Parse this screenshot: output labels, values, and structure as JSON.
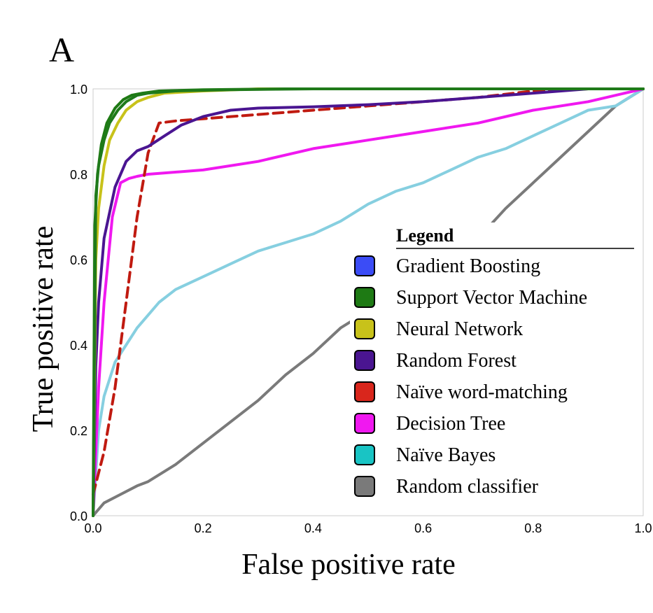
{
  "panel_label": "A",
  "chart_data": {
    "type": "line",
    "title": "",
    "xlabel": "False positive rate",
    "ylabel": "True positive rate",
    "xlim": [
      0.0,
      1.0
    ],
    "ylim": [
      0.0,
      1.0
    ],
    "xticks": [
      "0.0",
      "0.2",
      "0.4",
      "0.6",
      "0.8",
      "1.0"
    ],
    "yticks": [
      "0.0",
      "0.2",
      "0.4",
      "0.6",
      "0.8",
      "1.0"
    ],
    "grid": false,
    "legend_title": "Legend",
    "legend_position": "bottom-right",
    "series": [
      {
        "name": "Gradient Boosting",
        "color": "#3b4cf6",
        "line_color": "#1f7a1a",
        "dashed": false,
        "x": [
          0.0,
          0.005,
          0.01,
          0.02,
          0.03,
          0.045,
          0.06,
          0.08,
          0.1,
          0.15,
          0.25,
          0.4,
          1.0
        ],
        "y": [
          0.0,
          0.75,
          0.82,
          0.88,
          0.92,
          0.95,
          0.97,
          0.985,
          0.99,
          0.995,
          0.998,
          1.0,
          1.0
        ]
      },
      {
        "name": "Support Vector Machine",
        "color": "#1e7a14",
        "line_color": "#1e7a14",
        "dashed": false,
        "x": [
          0.0,
          0.003,
          0.008,
          0.015,
          0.025,
          0.04,
          0.055,
          0.07,
          0.09,
          0.12,
          0.2,
          0.35,
          1.0
        ],
        "y": [
          0.0,
          0.68,
          0.8,
          0.87,
          0.92,
          0.955,
          0.975,
          0.985,
          0.99,
          0.995,
          0.998,
          1.0,
          1.0
        ]
      },
      {
        "name": "Neural Network",
        "color": "#c8c21a",
        "line_color": "#c8c21a",
        "dashed": false,
        "x": [
          0.0,
          0.005,
          0.01,
          0.02,
          0.03,
          0.045,
          0.06,
          0.08,
          0.1,
          0.13,
          0.2,
          0.3,
          1.0
        ],
        "y": [
          0.0,
          0.6,
          0.72,
          0.82,
          0.88,
          0.92,
          0.95,
          0.97,
          0.98,
          0.99,
          0.995,
          1.0,
          1.0
        ]
      },
      {
        "name": "Random Forest",
        "color": "#4a1591",
        "line_color": "#4a1591",
        "dashed": false,
        "x": [
          0.0,
          0.005,
          0.01,
          0.02,
          0.04,
          0.06,
          0.08,
          0.1,
          0.13,
          0.16,
          0.2,
          0.25,
          0.3,
          0.4,
          0.5,
          0.6,
          0.7,
          0.8,
          0.9,
          1.0
        ],
        "y": [
          0.0,
          0.35,
          0.5,
          0.65,
          0.77,
          0.83,
          0.855,
          0.865,
          0.89,
          0.915,
          0.935,
          0.95,
          0.955,
          0.958,
          0.963,
          0.97,
          0.98,
          0.99,
          1.0,
          1.0
        ]
      },
      {
        "name": "Naïve word-matching",
        "color": "#d9261c",
        "line_color": "#c01a10",
        "dashed": true,
        "x": [
          0.0,
          0.02,
          0.04,
          0.06,
          0.08,
          0.1,
          0.12,
          0.15,
          0.2,
          0.3,
          0.4,
          0.5,
          0.6,
          0.7,
          0.8,
          0.9,
          1.0
        ],
        "y": [
          0.05,
          0.15,
          0.3,
          0.5,
          0.7,
          0.85,
          0.92,
          0.925,
          0.93,
          0.94,
          0.95,
          0.96,
          0.97,
          0.98,
          0.995,
          1.0,
          1.0
        ]
      },
      {
        "name": "Decision Tree",
        "color": "#f018f0",
        "line_color": "#f018f0",
        "dashed": false,
        "x": [
          0.0,
          0.01,
          0.02,
          0.035,
          0.05,
          0.065,
          0.08,
          0.1,
          0.2,
          0.3,
          0.4,
          0.5,
          0.6,
          0.7,
          0.8,
          0.9,
          1.0
        ],
        "y": [
          0.0,
          0.3,
          0.5,
          0.7,
          0.78,
          0.79,
          0.795,
          0.8,
          0.81,
          0.83,
          0.86,
          0.88,
          0.9,
          0.92,
          0.95,
          0.97,
          1.0
        ]
      },
      {
        "name": "Naïve Bayes",
        "color": "#19c4c4",
        "line_color": "#86cfe0",
        "dashed": false,
        "x": [
          0.0,
          0.01,
          0.02,
          0.04,
          0.06,
          0.08,
          0.1,
          0.12,
          0.15,
          0.2,
          0.25,
          0.3,
          0.35,
          0.4,
          0.45,
          0.5,
          0.55,
          0.6,
          0.65,
          0.7,
          0.75,
          0.8,
          0.85,
          0.9,
          0.95,
          1.0
        ],
        "y": [
          0.0,
          0.2,
          0.28,
          0.36,
          0.4,
          0.44,
          0.47,
          0.5,
          0.53,
          0.56,
          0.59,
          0.62,
          0.64,
          0.66,
          0.69,
          0.73,
          0.76,
          0.78,
          0.81,
          0.84,
          0.86,
          0.89,
          0.92,
          0.95,
          0.96,
          1.0
        ]
      },
      {
        "name": "Random classifier",
        "color": "#7a7a7a",
        "line_color": "#7a7a7a",
        "dashed": false,
        "x": [
          0.0,
          0.02,
          0.05,
          0.08,
          0.1,
          0.15,
          0.2,
          0.25,
          0.3,
          0.35,
          0.4,
          0.45,
          0.5,
          0.55,
          0.6,
          0.65,
          0.7,
          0.75,
          0.8,
          0.85,
          0.9,
          0.95,
          1.0
        ],
        "y": [
          0.0,
          0.03,
          0.05,
          0.07,
          0.08,
          0.12,
          0.17,
          0.22,
          0.27,
          0.33,
          0.38,
          0.44,
          0.48,
          0.52,
          0.56,
          0.6,
          0.65,
          0.72,
          0.78,
          0.84,
          0.9,
          0.96,
          1.0
        ]
      }
    ]
  }
}
